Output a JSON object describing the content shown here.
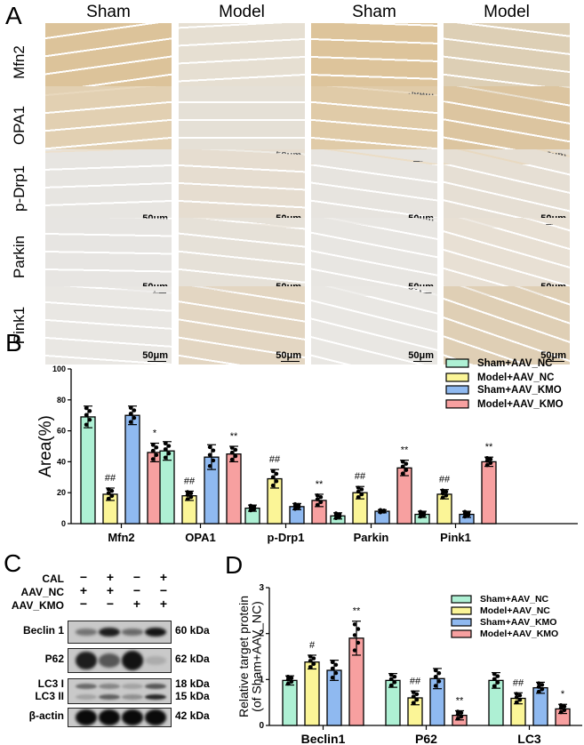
{
  "panelA": {
    "letter": "A",
    "columns": [
      "Sham",
      "Model",
      "Sham",
      "Model"
    ],
    "rows": [
      "Mfn2",
      "OPA1",
      "p-Drp1",
      "Parkin",
      "Pink1"
    ],
    "scale_bar": "50μm",
    "tile_colors": [
      [
        "#dcc39a",
        "#e6dfd2",
        "#ddc49b",
        "#ddcfb5"
      ],
      [
        "#e2d0b2",
        "#e5e0d6",
        "#e0cba8",
        "#dcc5a0"
      ],
      [
        "#e7e5e1",
        "#e6ddd0",
        "#e7e4df",
        "#e6dfd4"
      ],
      [
        "#e7e5e2",
        "#e6e1d8",
        "#e8e6e2",
        "#e8e0d4"
      ],
      [
        "#e9e7e3",
        "#e3d6c2",
        "#e9e7e3",
        "#dfcfb5"
      ]
    ]
  },
  "panelB": {
    "letter": "B"
  },
  "panelC": {
    "letter": "C",
    "conditions": [
      {
        "label": "CAL",
        "signs": [
          "−",
          "+",
          "−",
          "+"
        ]
      },
      {
        "label": "AAV_NC",
        "signs": [
          "+",
          "+",
          "−",
          "−"
        ]
      },
      {
        "label": "AAV_KMO",
        "signs": [
          "−",
          "−",
          "+",
          "+"
        ]
      }
    ],
    "blots": [
      {
        "label": "Beclin 1",
        "kda": "60 kDa"
      },
      {
        "label": "P62",
        "kda": "62 kDa"
      },
      {
        "label": "LC3 I",
        "kda": "18 kDa"
      },
      {
        "label": "LC3 II",
        "kda": "15 kDa"
      },
      {
        "label": "β-actin",
        "kda": "42 kDa"
      }
    ]
  },
  "panelD": {
    "letter": "D"
  },
  "legend": [
    "Sham+AAV_NC",
    "Model+AAV_NC",
    "Sham+AAV_KMO",
    "Model+AAV_KMO"
  ],
  "colors": {
    "Sham+AAV_NC": "#aef0d4",
    "Model+AAV_NC": "#fbf597",
    "Sham+AAV_KMO": "#8fb9f0",
    "Model+AAV_KMO": "#f7a0a0"
  },
  "chart_data": [
    {
      "type": "bar",
      "panel": "B",
      "title": "",
      "xlabel": "",
      "ylabel": "Area(%)",
      "ylim": [
        0,
        100
      ],
      "yticks": [
        0,
        20,
        40,
        60,
        80,
        100
      ],
      "categories": [
        "Mfn2",
        "OPA1",
        "p-Drp1",
        "Parkin",
        "Pink1"
      ],
      "series": [
        {
          "name": "Sham+AAV_NC",
          "values": [
            69,
            47,
            10,
            5,
            6
          ],
          "errors": [
            7,
            6,
            2,
            2,
            2
          ],
          "annotations": [
            "",
            "",
            "",
            "",
            ""
          ]
        },
        {
          "name": "Model+AAV_NC",
          "values": [
            19,
            18,
            29,
            20,
            19
          ],
          "errors": [
            4,
            3,
            6,
            4,
            3
          ],
          "annotations": [
            "##",
            "##",
            "##",
            "##",
            "##"
          ]
        },
        {
          "name": "Sham+AAV_KMO",
          "values": [
            70,
            43,
            11,
            8,
            6
          ],
          "errors": [
            6,
            8,
            2,
            1,
            2
          ],
          "annotations": [
            "",
            "",
            "",
            "",
            ""
          ]
        },
        {
          "name": "Model+AAV_KMO",
          "values": [
            46,
            45,
            15,
            36,
            40
          ],
          "errors": [
            6,
            5,
            4,
            5,
            3
          ],
          "annotations": [
            "*",
            "**",
            "**",
            "**",
            "**"
          ]
        }
      ],
      "legend_position": "upper right",
      "grid": false
    },
    {
      "type": "bar",
      "panel": "D",
      "title": "",
      "xlabel": "",
      "ylabel": "Relative target protein\n(of Sham+AAV_NC)",
      "ylim": [
        0,
        3
      ],
      "yticks": [
        0,
        1,
        2,
        3
      ],
      "categories": [
        "Beclin1",
        "P62",
        "LC3"
      ],
      "series": [
        {
          "name": "Sham+AAV_NC",
          "values": [
            0.98,
            0.98,
            0.98
          ],
          "errors": [
            0.1,
            0.15,
            0.17
          ],
          "annotations": [
            "",
            "",
            ""
          ]
        },
        {
          "name": "Model+AAV_NC",
          "values": [
            1.38,
            0.6,
            0.59
          ],
          "errors": [
            0.15,
            0.15,
            0.12
          ],
          "annotations": [
            "#",
            "##",
            "##"
          ]
        },
        {
          "name": "Sham+AAV_KMO",
          "values": [
            1.2,
            1.02,
            0.82
          ],
          "errors": [
            0.22,
            0.22,
            0.12
          ],
          "annotations": [
            "",
            "",
            ""
          ]
        },
        {
          "name": "Model+AAV_KMO",
          "values": [
            1.9,
            0.22,
            0.36
          ],
          "errors": [
            0.37,
            0.1,
            0.1
          ],
          "annotations": [
            "**",
            "**",
            "*"
          ]
        }
      ],
      "legend_position": "upper right",
      "grid": false
    }
  ]
}
